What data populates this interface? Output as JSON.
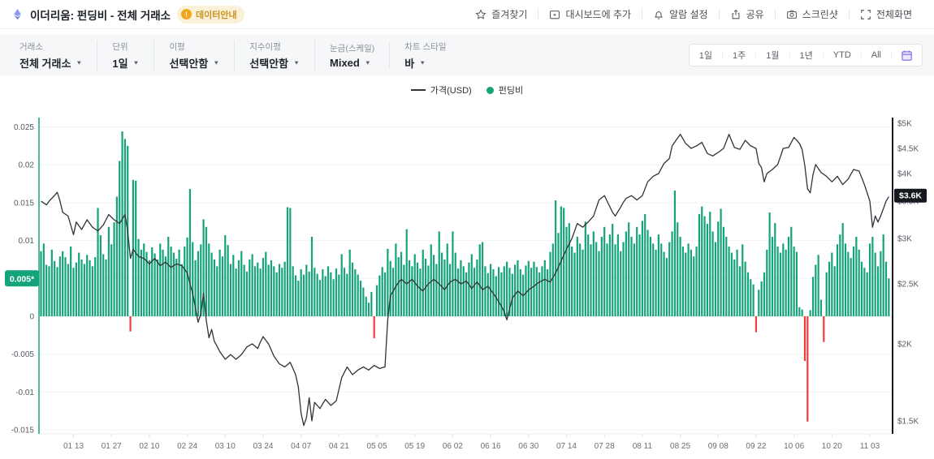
{
  "header": {
    "title": "이더리움: 펀딩비 - 전체 거래소",
    "badge_label": "데이터안내",
    "actions": [
      {
        "id": "favorite",
        "icon": "star",
        "label": "즐겨찾기"
      },
      {
        "id": "add-to-dashboard",
        "icon": "dashboard-add",
        "label": "대시보드에 추가"
      },
      {
        "id": "alarm",
        "icon": "bell",
        "label": "알람 설정"
      },
      {
        "id": "share",
        "icon": "share",
        "label": "공유"
      },
      {
        "id": "screenshot",
        "icon": "camera",
        "label": "스크린샷"
      },
      {
        "id": "fullscreen",
        "icon": "fullscreen",
        "label": "전체화면"
      }
    ]
  },
  "toolbar": {
    "filters": [
      {
        "id": "exchange",
        "label": "거래소",
        "value": "전체 거래소"
      },
      {
        "id": "unit",
        "label": "단위",
        "value": "1일"
      },
      {
        "id": "ma",
        "label": "이평",
        "value": "선택안함"
      },
      {
        "id": "ema",
        "label": "지수이평",
        "value": "선택안함"
      },
      {
        "id": "scale",
        "label": "눈금(스케일)",
        "value": "Mixed"
      },
      {
        "id": "chart-style",
        "label": "차트 스타일",
        "value": "바"
      }
    ],
    "ranges": [
      "1일",
      "1주",
      "1월",
      "1년",
      "YTD",
      "All"
    ]
  },
  "legend": [
    {
      "id": "price",
      "label": "가격(USD)",
      "swatch": "line",
      "color": "#2f333a"
    },
    {
      "id": "funding",
      "label": "펀딩비",
      "swatch": "dot",
      "color": "#14a37a"
    }
  ],
  "chart_data": {
    "type": "bar",
    "title": "이더리움 펀딩비 - 전체 거래소 (1일, 바 차트) + 가격(USD) 라인",
    "left_axis": {
      "tick_labels": [
        "0.025",
        "0.02",
        "0.015",
        "0.01",
        "0.005",
        "0",
        "-0.005",
        "-0.01",
        "-0.015"
      ],
      "tick_values": [
        0.025,
        0.02,
        0.015,
        0.01,
        0.005,
        0,
        -0.005,
        -0.01,
        -0.015
      ],
      "current_value_label": "0.005*",
      "current_value": 0.005,
      "range": [
        -0.015,
        0.025
      ],
      "color": "#14a37a"
    },
    "right_axis": {
      "tick_labels": [
        "$5K",
        "$4.5K",
        "$4K",
        "$3.5K",
        "$3K",
        "$2.5K",
        "$2K",
        "$1.5K"
      ],
      "tick_values": [
        5,
        4.5,
        4,
        3.5,
        3,
        2.5,
        2,
        1.5
      ],
      "current_value_label": "$3.6K",
      "current_value": 3.6,
      "scale": "log-like",
      "color": "#15181e"
    },
    "x_labels": [
      "01 13",
      "01 27",
      "02 10",
      "02 24",
      "03 10",
      "03 24",
      "04 07",
      "04 21",
      "05 05",
      "05 19",
      "06 02",
      "06 16",
      "06 30",
      "07 14",
      "07 28",
      "08 11",
      "08 25",
      "09 08",
      "09 22",
      "10 06",
      "10 20",
      "11 03"
    ],
    "series": [
      {
        "name": "펀딩비",
        "type": "bar",
        "axis": "left",
        "interval": "1d",
        "start_label": "01 01",
        "color_positive": "#14a37a",
        "color_negative": "#f23c3c",
        "values": [
          0.0086,
          0.0096,
          0.0068,
          0.0066,
          0.0088,
          0.0073,
          0.0065,
          0.0079,
          0.0086,
          0.0078,
          0.0069,
          0.0092,
          0.0064,
          0.0071,
          0.0084,
          0.0075,
          0.0069,
          0.0081,
          0.0074,
          0.0066,
          0.0078,
          0.0143,
          0.0107,
          0.0082,
          0.0075,
          0.0118,
          0.0095,
          0.0124,
          0.0158,
          0.0205,
          0.0244,
          0.0234,
          0.0225,
          -0.002,
          0.018,
          0.0179,
          0.0102,
          0.0088,
          0.0096,
          0.0085,
          0.0074,
          0.0091,
          0.0083,
          0.0075,
          0.0096,
          0.0088,
          0.0079,
          0.0105,
          0.0092,
          0.0084,
          0.0076,
          0.0088,
          0.0069,
          0.0092,
          0.0104,
          0.0168,
          0.0098,
          0.0074,
          0.0086,
          0.0095,
          0.0128,
          0.0118,
          0.0096,
          0.0084,
          0.0075,
          0.0066,
          0.0088,
          0.0079,
          0.0107,
          0.0094,
          0.0069,
          0.0081,
          0.0063,
          0.0074,
          0.0086,
          0.0068,
          0.0059,
          0.0075,
          0.0082,
          0.0066,
          0.0071,
          0.0063,
          0.0077,
          0.0085,
          0.0068,
          0.0074,
          0.0066,
          0.0058,
          0.0069,
          0.0064,
          0.0072,
          0.0144,
          0.0143,
          0.0066,
          0.0054,
          0.0047,
          0.0062,
          0.0055,
          0.0068,
          0.0059,
          0.0105,
          0.0064,
          0.0056,
          0.0048,
          0.0062,
          0.0053,
          0.0066,
          0.0058,
          0.0049,
          0.0063,
          0.0055,
          0.0082,
          0.0064,
          0.0056,
          0.0088,
          0.0071,
          0.0062,
          0.0055,
          0.0047,
          0.0038,
          0.0026,
          0.0018,
          0.0032,
          -0.0029,
          0.0041,
          0.0054,
          0.0065,
          0.0058,
          0.0089,
          0.0073,
          0.0064,
          0.0096,
          0.0078,
          0.0085,
          0.0068,
          0.0115,
          0.0074,
          0.0066,
          0.0082,
          0.0071,
          0.0063,
          0.0088,
          0.0076,
          0.0067,
          0.0095,
          0.0081,
          0.0069,
          0.0112,
          0.0084,
          0.0075,
          0.0096,
          0.0069,
          0.0112,
          0.0084,
          0.0063,
          0.0074,
          0.0066,
          0.0058,
          0.0071,
          0.0082,
          0.0064,
          0.0075,
          0.0095,
          0.0098,
          0.0066,
          0.0057,
          0.0069,
          0.0062,
          0.0053,
          0.0065,
          0.0058,
          0.0066,
          0.0072,
          0.0064,
          0.0056,
          0.0068,
          0.0074,
          0.0062,
          0.0055,
          0.0067,
          0.0073,
          0.0064,
          0.0072,
          0.0065,
          0.0058,
          0.0066,
          0.0074,
          0.0062,
          0.0085,
          0.0096,
          0.0153,
          0.011,
          0.0145,
          0.0143,
          0.0118,
          0.0123,
          0.0092,
          0.0084,
          0.0105,
          0.0096,
          0.0088,
          0.0125,
          0.0108,
          0.0095,
          0.0112,
          0.0098,
          0.0086,
          0.0105,
          0.0118,
          0.0096,
          0.0108,
          0.0122,
          0.0095,
          0.0108,
          0.0086,
          0.0098,
          0.0112,
          0.0124,
          0.0105,
          0.0096,
          0.0118,
          0.0108,
          0.0126,
          0.0135,
          0.0114,
          0.0105,
          0.0096,
          0.0088,
          0.0108,
          0.0096,
          0.0085,
          0.0077,
          0.0098,
          0.0112,
          0.0166,
          0.0124,
          0.0105,
          0.0092,
          0.0084,
          0.0096,
          0.0088,
          0.0079,
          0.0092,
          0.0135,
          0.0145,
          0.0132,
          0.0122,
          0.0138,
          0.0112,
          0.0098,
          0.0125,
          0.0142,
          0.0118,
          0.0105,
          0.0092,
          0.0084,
          0.0075,
          0.0088,
          0.0066,
          0.0095,
          0.0072,
          0.0058,
          0.0049,
          0.0042,
          -0.0021,
          0.0035,
          0.0046,
          0.0058,
          0.0088,
          0.0137,
          0.0105,
          0.0123,
          0.0092,
          0.0084,
          0.0096,
          0.0088,
          0.0105,
          0.0118,
          0.0092,
          0.0085,
          0.0012,
          0.0009,
          -0.0059,
          -0.0139,
          0.0008,
          0.0052,
          0.0068,
          0.0081,
          0.0022,
          -0.0034,
          0.0058,
          0.0072,
          0.0084,
          0.0066,
          0.0095,
          0.0108,
          0.0123,
          0.0096,
          0.0085,
          0.0077,
          0.0092,
          0.0105,
          0.0088,
          0.0072,
          0.0064,
          0.0058,
          0.0096,
          0.0105,
          0.0084,
          0.0066,
          0.0086,
          0.0108,
          0.0072,
          0.005
        ]
      },
      {
        "name": "가격(USD)",
        "type": "line",
        "axis": "right",
        "unit": "K USD",
        "color": "#2f333a",
        "keypoints": [
          [
            0,
            3.5
          ],
          [
            2,
            3.45
          ],
          [
            4,
            3.55
          ],
          [
            6,
            3.66
          ],
          [
            8,
            3.35
          ],
          [
            10,
            3.3
          ],
          [
            12,
            3.05
          ],
          [
            13,
            3.22
          ],
          [
            15,
            3.12
          ],
          [
            17,
            3.25
          ],
          [
            19,
            3.15
          ],
          [
            21,
            3.1
          ],
          [
            23,
            3.18
          ],
          [
            25,
            3.32
          ],
          [
            27,
            3.25
          ],
          [
            29,
            3.2
          ],
          [
            31,
            3.32
          ],
          [
            32,
            3.1
          ],
          [
            33,
            2.78
          ],
          [
            34,
            2.88
          ],
          [
            36,
            2.8
          ],
          [
            38,
            2.78
          ],
          [
            40,
            2.72
          ],
          [
            42,
            2.78
          ],
          [
            44,
            2.7
          ],
          [
            46,
            2.74
          ],
          [
            48,
            2.68
          ],
          [
            50,
            2.72
          ],
          [
            52,
            2.7
          ],
          [
            54,
            2.62
          ],
          [
            55,
            2.5
          ],
          [
            56,
            2.42
          ],
          [
            57,
            2.3
          ],
          [
            58,
            2.18
          ],
          [
            59,
            2.25
          ],
          [
            60,
            2.42
          ],
          [
            61,
            2.2
          ],
          [
            62,
            2.05
          ],
          [
            63,
            2.12
          ],
          [
            64,
            2.02
          ],
          [
            66,
            1.95
          ],
          [
            68,
            1.9
          ],
          [
            70,
            1.93
          ],
          [
            72,
            1.9
          ],
          [
            74,
            1.93
          ],
          [
            76,
            1.98
          ],
          [
            78,
            2.0
          ],
          [
            80,
            1.97
          ],
          [
            82,
            2.06
          ],
          [
            84,
            2.0
          ],
          [
            86,
            1.92
          ],
          [
            88,
            1.87
          ],
          [
            90,
            1.85
          ],
          [
            92,
            1.88
          ],
          [
            94,
            1.8
          ],
          [
            95,
            1.72
          ],
          [
            96,
            1.55
          ],
          [
            97,
            1.47
          ],
          [
            98,
            1.52
          ],
          [
            99,
            1.65
          ],
          [
            100,
            1.5
          ],
          [
            101,
            1.62
          ],
          [
            103,
            1.58
          ],
          [
            105,
            1.64
          ],
          [
            107,
            1.6
          ],
          [
            109,
            1.63
          ],
          [
            111,
            1.78
          ],
          [
            113,
            1.85
          ],
          [
            115,
            1.8
          ],
          [
            117,
            1.83
          ],
          [
            119,
            1.85
          ],
          [
            121,
            1.83
          ],
          [
            123,
            1.86
          ],
          [
            125,
            1.84
          ],
          [
            127,
            1.85
          ],
          [
            128,
            2.2
          ],
          [
            129,
            2.4
          ],
          [
            131,
            2.48
          ],
          [
            133,
            2.55
          ],
          [
            135,
            2.5
          ],
          [
            137,
            2.55
          ],
          [
            139,
            2.48
          ],
          [
            141,
            2.44
          ],
          [
            143,
            2.5
          ],
          [
            145,
            2.55
          ],
          [
            147,
            2.5
          ],
          [
            149,
            2.45
          ],
          [
            151,
            2.52
          ],
          [
            153,
            2.55
          ],
          [
            155,
            2.5
          ],
          [
            157,
            2.53
          ],
          [
            159,
            2.46
          ],
          [
            161,
            2.52
          ],
          [
            163,
            2.45
          ],
          [
            165,
            2.48
          ],
          [
            167,
            2.42
          ],
          [
            169,
            2.35
          ],
          [
            171,
            2.27
          ],
          [
            172,
            2.2
          ],
          [
            174,
            2.38
          ],
          [
            176,
            2.44
          ],
          [
            178,
            2.4
          ],
          [
            180,
            2.45
          ],
          [
            182,
            2.48
          ],
          [
            184,
            2.52
          ],
          [
            186,
            2.55
          ],
          [
            188,
            2.52
          ],
          [
            190,
            2.62
          ],
          [
            192,
            2.75
          ],
          [
            194,
            2.88
          ],
          [
            196,
            3.0
          ],
          [
            198,
            3.2
          ],
          [
            200,
            3.15
          ],
          [
            202,
            3.22
          ],
          [
            204,
            3.3
          ],
          [
            206,
            3.52
          ],
          [
            208,
            3.6
          ],
          [
            209,
            3.5
          ],
          [
            211,
            3.35
          ],
          [
            212,
            3.3
          ],
          [
            214,
            3.42
          ],
          [
            216,
            3.55
          ],
          [
            218,
            3.6
          ],
          [
            220,
            3.52
          ],
          [
            222,
            3.6
          ],
          [
            224,
            3.85
          ],
          [
            226,
            3.95
          ],
          [
            228,
            4.0
          ],
          [
            230,
            4.2
          ],
          [
            232,
            4.3
          ],
          [
            233,
            4.55
          ],
          [
            236,
            4.78
          ],
          [
            238,
            4.6
          ],
          [
            240,
            4.5
          ],
          [
            242,
            4.55
          ],
          [
            244,
            4.62
          ],
          [
            246,
            4.4
          ],
          [
            248,
            4.35
          ],
          [
            250,
            4.42
          ],
          [
            252,
            4.5
          ],
          [
            254,
            4.78
          ],
          [
            256,
            4.52
          ],
          [
            258,
            4.48
          ],
          [
            260,
            4.66
          ],
          [
            262,
            4.55
          ],
          [
            264,
            4.5
          ],
          [
            265,
            4.2
          ],
          [
            266,
            4.12
          ],
          [
            267,
            3.85
          ],
          [
            268,
            4.0
          ],
          [
            270,
            4.08
          ],
          [
            272,
            4.18
          ],
          [
            274,
            4.5
          ],
          [
            276,
            4.52
          ],
          [
            278,
            4.72
          ],
          [
            280,
            4.6
          ],
          [
            281,
            4.48
          ],
          [
            282,
            4.15
          ],
          [
            283,
            3.72
          ],
          [
            284,
            3.65
          ],
          [
            285,
            3.98
          ],
          [
            286,
            4.18
          ],
          [
            288,
            4.02
          ],
          [
            290,
            3.95
          ],
          [
            292,
            3.85
          ],
          [
            294,
            3.95
          ],
          [
            296,
            3.8
          ],
          [
            298,
            3.9
          ],
          [
            300,
            4.08
          ],
          [
            302,
            4.05
          ],
          [
            304,
            3.8
          ],
          [
            306,
            3.5
          ],
          [
            307,
            3.15
          ],
          [
            308,
            3.3
          ],
          [
            309,
            3.22
          ],
          [
            310,
            3.3
          ],
          [
            312,
            3.5
          ],
          [
            313,
            3.58
          ]
        ]
      }
    ]
  }
}
